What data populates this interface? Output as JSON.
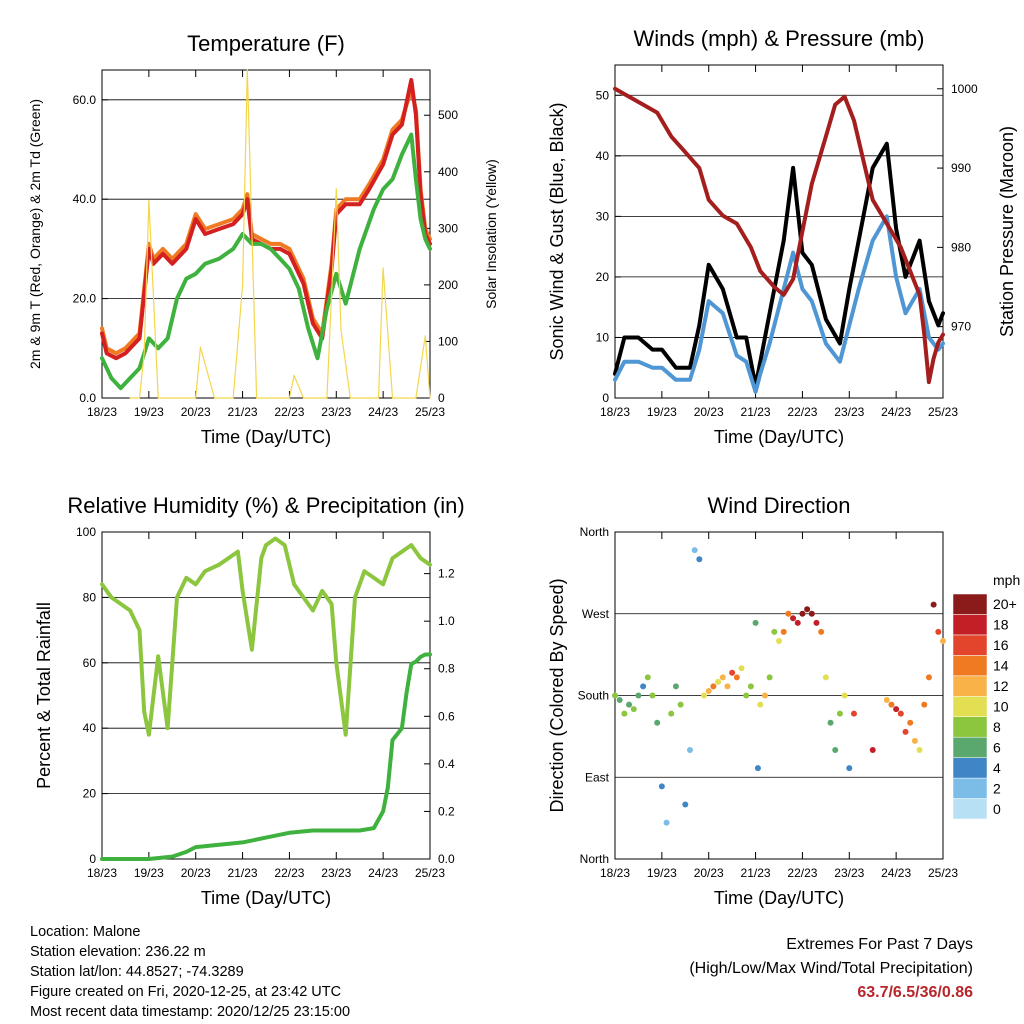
{
  "x_ticks": [
    "18/23",
    "19/23",
    "20/23",
    "21/23",
    "22/23",
    "23/23",
    "24/23",
    "25/23"
  ],
  "chart_data": [
    {
      "type": "line",
      "title": "Temperature (F)",
      "xlabel": "Time (Day/UTC)",
      "ylabel": "2m & 9m T (Red, Orange) & 2m Td (Green)",
      "y2label": "Solar Insolation (Yellow)",
      "ylim": [
        0,
        66
      ],
      "y2lim": [
        0,
        580
      ],
      "yticks": [
        "0.0",
        "20.0",
        "40.0",
        "60.0"
      ],
      "y2ticks": [
        "0",
        "100",
        "200",
        "300",
        "400",
        "500"
      ],
      "series": [
        {
          "color": "#f07a22",
          "x": [
            0,
            0.1,
            0.3,
            0.5,
            0.8,
            1.0,
            1.1,
            1.3,
            1.5,
            1.8,
            2.0,
            2.2,
            2.5,
            2.8,
            3.0,
            3.1,
            3.2,
            3.4,
            3.6,
            3.8,
            4.0,
            4.3,
            4.5,
            4.7,
            4.9,
            5.0,
            5.2,
            5.5,
            5.7,
            6.0,
            6.2,
            6.4,
            6.6,
            6.7,
            6.8,
            6.9,
            7.0
          ],
          "y": [
            14,
            10,
            9,
            10,
            13,
            31,
            28,
            30,
            28,
            31,
            37,
            34,
            35,
            36,
            38,
            41,
            33,
            32,
            31,
            31,
            30,
            24,
            16,
            13,
            27,
            38,
            40,
            40,
            43,
            48,
            54,
            56,
            62,
            58,
            42,
            34,
            32
          ]
        },
        {
          "color": "#d42020",
          "x": [
            0,
            0.1,
            0.3,
            0.5,
            0.8,
            1.0,
            1.1,
            1.3,
            1.5,
            1.8,
            2.0,
            2.2,
            2.5,
            2.8,
            3.0,
            3.1,
            3.2,
            3.4,
            3.6,
            3.8,
            4.0,
            4.3,
            4.5,
            4.7,
            4.9,
            5.0,
            5.2,
            5.5,
            5.7,
            6.0,
            6.2,
            6.4,
            6.6,
            6.7,
            6.8,
            6.9,
            7.0
          ],
          "y": [
            13,
            9,
            8,
            9,
            12,
            30,
            27,
            29,
            27,
            30,
            36,
            33,
            34,
            35,
            37,
            40,
            32,
            31,
            30,
            30,
            29,
            23,
            15,
            12,
            26,
            37,
            39,
            39,
            42,
            47,
            53,
            55,
            64,
            57,
            41,
            33,
            31
          ]
        },
        {
          "color": "#3eb13e",
          "x": [
            0,
            0.2,
            0.4,
            0.6,
            0.8,
            1.0,
            1.2,
            1.4,
            1.6,
            1.8,
            2.0,
            2.2,
            2.5,
            2.8,
            3.0,
            3.2,
            3.4,
            3.6,
            3.8,
            4.0,
            4.2,
            4.4,
            4.6,
            4.8,
            5.0,
            5.2,
            5.5,
            5.8,
            6.0,
            6.2,
            6.4,
            6.6,
            6.7,
            6.8,
            6.9,
            7.0
          ],
          "y": [
            8,
            4,
            2,
            4,
            6,
            12,
            10,
            12,
            20,
            24,
            25,
            27,
            28,
            30,
            33,
            31,
            31,
            30,
            28,
            26,
            22,
            14,
            8,
            18,
            25,
            19,
            30,
            38,
            42,
            44,
            49,
            53,
            44,
            36,
            32,
            30
          ]
        },
        {
          "color": "#f3d64b",
          "axis": "y2",
          "x": [
            0.6,
            0.8,
            0.9,
            1.0,
            1.2,
            1.6,
            2.0,
            2.1,
            2.4,
            2.8,
            3.0,
            3.1,
            3.3,
            3.6,
            4.0,
            4.1,
            4.3,
            4.6,
            4.8,
            5.0,
            5.1,
            5.3,
            5.6,
            5.9,
            6.0,
            6.2,
            6.4,
            6.7,
            6.9,
            7.0
          ],
          "y": [
            0,
            0,
            80,
            350,
            0,
            0,
            0,
            90,
            0,
            0,
            200,
            580,
            0,
            0,
            0,
            40,
            0,
            0,
            0,
            370,
            120,
            0,
            0,
            0,
            230,
            0,
            0,
            0,
            110,
            0
          ]
        }
      ]
    },
    {
      "type": "line",
      "title": "Winds (mph) & Pressure (mb)",
      "xlabel": "Time (Day/UTC)",
      "ylabel": "Sonic Wind & Gust (Blue, Black)",
      "y2label": "Station Pressure (Maroon)",
      "ylim": [
        0,
        55
      ],
      "y2lim": [
        961,
        1003
      ],
      "yticks": [
        "0",
        "10",
        "20",
        "30",
        "40",
        "50"
      ],
      "y2ticks": [
        "970",
        "980",
        "990",
        "1000"
      ],
      "series": [
        {
          "color": "#000000",
          "x": [
            0,
            0.2,
            0.5,
            0.8,
            1.0,
            1.3,
            1.6,
            1.8,
            2.0,
            2.3,
            2.6,
            2.8,
            3.0,
            3.1,
            3.3,
            3.6,
            3.8,
            4.0,
            4.2,
            4.5,
            4.8,
            5.0,
            5.2,
            5.5,
            5.8,
            6.0,
            6.2,
            6.5,
            6.7,
            6.9,
            7.0
          ],
          "y": [
            4,
            10,
            10,
            8,
            8,
            5,
            5,
            12,
            22,
            18,
            10,
            10,
            2,
            6,
            14,
            26,
            38,
            24,
            22,
            13,
            9,
            18,
            26,
            38,
            42,
            28,
            20,
            26,
            16,
            12,
            14
          ]
        },
        {
          "color": "#4e96d4",
          "x": [
            0,
            0.2,
            0.5,
            0.8,
            1.0,
            1.3,
            1.6,
            1.8,
            2.0,
            2.3,
            2.6,
            2.8,
            3.0,
            3.1,
            3.3,
            3.6,
            3.8,
            4.0,
            4.2,
            4.5,
            4.8,
            5.0,
            5.2,
            5.5,
            5.8,
            6.0,
            6.2,
            6.5,
            6.7,
            6.9,
            7.0
          ],
          "y": [
            3,
            6,
            6,
            5,
            5,
            3,
            3,
            8,
            16,
            14,
            7,
            6,
            1,
            4,
            9,
            18,
            24,
            18,
            16,
            9,
            6,
            12,
            18,
            26,
            30,
            20,
            14,
            18,
            10,
            8,
            9
          ]
        },
        {
          "color": "#a51e1e",
          "axis": "y2",
          "x": [
            0,
            0.3,
            0.6,
            0.9,
            1.2,
            1.5,
            1.8,
            2.0,
            2.3,
            2.6,
            2.9,
            3.1,
            3.4,
            3.6,
            3.8,
            4.0,
            4.2,
            4.5,
            4.7,
            4.9,
            5.1,
            5.3,
            5.5,
            5.7,
            5.9,
            6.1,
            6.3,
            6.5,
            6.6,
            6.7,
            6.8,
            6.9,
            7.0
          ],
          "y": [
            1000,
            999,
            998,
            997,
            994,
            992,
            990,
            986,
            984,
            983,
            980,
            977,
            975,
            974,
            976,
            982,
            988,
            994,
            998,
            999,
            996,
            991,
            986,
            984,
            982,
            980,
            977,
            974,
            969,
            963,
            966,
            968,
            969
          ]
        }
      ]
    },
    {
      "type": "line",
      "title": "Relative Humidity (%) & Precipitation (in)",
      "xlabel": "Time (Day/UTC)",
      "ylabel": "Percent & Total Rainfall",
      "ylim": [
        0,
        100
      ],
      "y2lim": [
        0,
        1.375
      ],
      "yticks": [
        "0",
        "20",
        "40",
        "60",
        "80",
        "100"
      ],
      "y2ticks": [
        "0.0",
        "0.2",
        "0.4",
        "0.6",
        "0.8",
        "1.0",
        "1.2"
      ],
      "series": [
        {
          "color": "#8cc63f",
          "x": [
            0,
            0.2,
            0.4,
            0.6,
            0.8,
            0.9,
            1.0,
            1.2,
            1.4,
            1.6,
            1.8,
            2.0,
            2.2,
            2.5,
            2.7,
            2.9,
            3.0,
            3.2,
            3.4,
            3.5,
            3.7,
            3.9,
            4.1,
            4.3,
            4.5,
            4.7,
            4.9,
            5.0,
            5.2,
            5.4,
            5.6,
            5.8,
            6.0,
            6.2,
            6.4,
            6.6,
            6.8,
            7.0
          ],
          "y": [
            84,
            80,
            78,
            76,
            70,
            45,
            38,
            62,
            40,
            80,
            86,
            84,
            88,
            90,
            92,
            94,
            82,
            64,
            92,
            96,
            98,
            96,
            84,
            80,
            76,
            82,
            78,
            60,
            38,
            80,
            88,
            86,
            84,
            92,
            94,
            96,
            92,
            90
          ]
        },
        {
          "color": "#3eb13e",
          "axis": "y2",
          "x": [
            0,
            0.5,
            1.0,
            1.5,
            1.8,
            2.0,
            2.5,
            3.0,
            3.5,
            4.0,
            4.5,
            5.0,
            5.5,
            5.8,
            6.0,
            6.1,
            6.2,
            6.4,
            6.5,
            6.6,
            6.7,
            6.8,
            6.9,
            7.0
          ],
          "y": [
            0,
            0,
            0,
            0.01,
            0.03,
            0.05,
            0.06,
            0.07,
            0.09,
            0.11,
            0.12,
            0.12,
            0.12,
            0.13,
            0.2,
            0.3,
            0.5,
            0.55,
            0.7,
            0.82,
            0.83,
            0.85,
            0.86,
            0.86
          ]
        }
      ]
    },
    {
      "type": "scatter",
      "title": "Wind Direction",
      "xlabel": "Time (Day/UTC)",
      "ylabel": "Direction (Colored By Speed)",
      "ylim": [
        0,
        360
      ],
      "yticks": [
        "North",
        "East",
        "South",
        "West",
        "North"
      ],
      "colorbar_title": "mph",
      "colorbar_labels": [
        "0",
        "2",
        "4",
        "6",
        "8",
        "10",
        "12",
        "14",
        "16",
        "18",
        "20+"
      ],
      "colorbar_colors": [
        "#b8e0f5",
        "#7cbde8",
        "#3f86c6",
        "#5aa86e",
        "#8cc63f",
        "#e3df52",
        "#f9b248",
        "#f07a22",
        "#e2452b",
        "#c22026",
        "#8b1a1a"
      ],
      "points_x": [
        0.0,
        0.1,
        0.2,
        0.3,
        0.4,
        0.5,
        0.6,
        0.7,
        0.8,
        0.9,
        1.0,
        1.1,
        1.2,
        1.3,
        1.4,
        1.5,
        1.6,
        1.7,
        1.8,
        1.9,
        2.0,
        2.1,
        2.2,
        2.3,
        2.4,
        2.5,
        2.6,
        2.7,
        2.8,
        2.9,
        3.0,
        3.05,
        3.1,
        3.2,
        3.3,
        3.4,
        3.5,
        3.6,
        3.7,
        3.8,
        3.9,
        4.0,
        4.1,
        4.2,
        4.3,
        4.4,
        4.5,
        4.6,
        4.7,
        4.8,
        4.9,
        5.0,
        5.1,
        5.5,
        5.8,
        5.9,
        6.0,
        6.1,
        6.2,
        6.3,
        6.4,
        6.5,
        6.6,
        6.7,
        6.8,
        6.9,
        7.0
      ],
      "points_dir": [
        180,
        175,
        160,
        170,
        165,
        180,
        190,
        200,
        180,
        150,
        80,
        40,
        160,
        190,
        170,
        60,
        120,
        340,
        330,
        180,
        185,
        190,
        195,
        200,
        190,
        205,
        200,
        210,
        180,
        190,
        260,
        100,
        170,
        180,
        200,
        250,
        240,
        250,
        270,
        265,
        260,
        270,
        275,
        270,
        260,
        250,
        200,
        150,
        120,
        160,
        180,
        100,
        160,
        120,
        175,
        170,
        165,
        160,
        140,
        150,
        130,
        120,
        170,
        200,
        280,
        250,
        240
      ],
      "points_speed": [
        8,
        6,
        9,
        7,
        8,
        6,
        5,
        8,
        9,
        6,
        4,
        3,
        8,
        7,
        9,
        4,
        3,
        2,
        4,
        10,
        12,
        14,
        11,
        13,
        12,
        16,
        14,
        10,
        9,
        8,
        7,
        4,
        10,
        12,
        9,
        8,
        11,
        14,
        15,
        18,
        19,
        20,
        21,
        20,
        18,
        14,
        10,
        6,
        7,
        9,
        11,
        4,
        16,
        18,
        12,
        14,
        18,
        17,
        16,
        15,
        12,
        10,
        14,
        15,
        20,
        16,
        12
      ]
    }
  ],
  "info": {
    "location": "Location: Malone",
    "elevation": "Station elevation: 236.22 m",
    "latlon": "Station lat/lon: 44.8527; -74.3289",
    "created": "Figure created on Fri, 2020-12-25, at 23:42 UTC",
    "recent": "Most recent data timestamp: 2020/12/25 23:15:00"
  },
  "extremes": {
    "line1": "Extremes For Past 7 Days",
    "line2": "(High/Low/Max Wind/Total Precipitation)",
    "value": "63.7/6.5/36/0.86"
  }
}
